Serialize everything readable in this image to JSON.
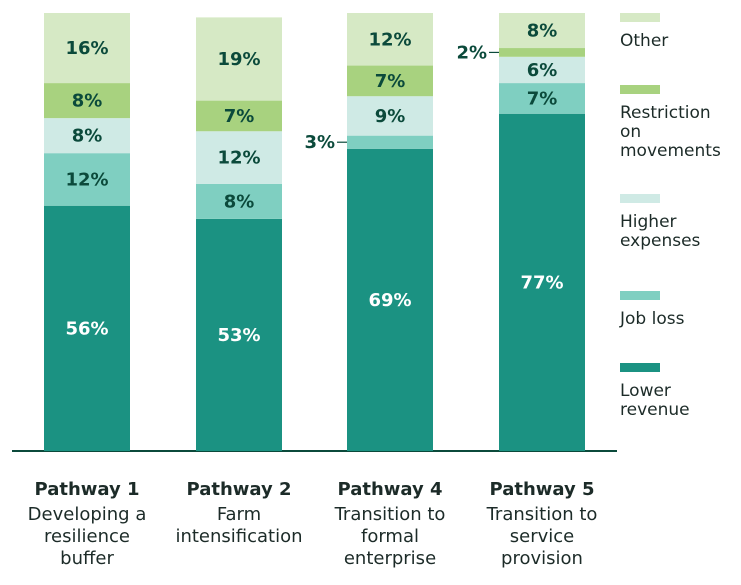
{
  "chart_data": {
    "type": "stacked_bar",
    "categories": [
      "Pathway 1",
      "Pathway 2",
      "Pathway 4",
      "Pathway 5"
    ],
    "category_descriptions": [
      "Developing a resilience buffer",
      "Farm intensification",
      "Transition to formal enterprise",
      "Transition to service provision"
    ],
    "ylim": [
      0,
      100
    ],
    "series": [
      {
        "name": "Lower revenue",
        "color": "#1b9282",
        "label_color": "#ffffff",
        "values": [
          56,
          53,
          69,
          77
        ],
        "value_labels": [
          "56%",
          "53%",
          "69%",
          "77%"
        ]
      },
      {
        "name": "Job loss",
        "color": "#7fcfc1",
        "label_color": "#0b4a3b",
        "values": [
          12,
          8,
          3,
          7
        ],
        "value_labels": [
          "12%",
          "8%",
          "3%",
          "7%"
        ]
      },
      {
        "name": "Higher expenses",
        "color": "#cfeae5",
        "label_color": "#0b4a3b",
        "values": [
          8,
          12,
          9,
          6
        ],
        "value_labels": [
          "8%",
          "12%",
          "9%",
          "6%"
        ]
      },
      {
        "name": "Restriction on movements",
        "color": "#a8d27f",
        "label_color": "#0b4a3b",
        "values": [
          8,
          7,
          7,
          2
        ],
        "value_labels": [
          "8%",
          "7%",
          "7%",
          "2%"
        ]
      },
      {
        "name": "Other",
        "color": "#d6e9c5",
        "label_color": "#0b4a3b",
        "values": [
          16,
          19,
          12,
          8
        ],
        "value_labels": [
          "16%",
          "19%",
          "12%",
          "8%"
        ]
      }
    ]
  }
}
